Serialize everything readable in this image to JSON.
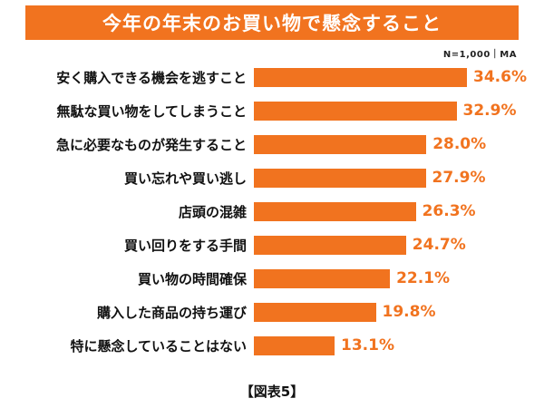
{
  "header": {
    "title": "今年の年末のお買い物で懸念すること"
  },
  "note": "N=1,000｜MA",
  "caption": "【図表5】",
  "colors": {
    "accent": "#F1731F",
    "text": "#111111",
    "background": "#ffffff"
  },
  "chart_data": {
    "type": "bar",
    "orientation": "horizontal",
    "title": "今年の年末のお買い物で懸念すること",
    "subtitle": "N=1,000｜MA",
    "categories": [
      "安く購入できる機会を逃すこと",
      "無駄な買い物をしてしまうこと",
      "急に必要なものが発生すること",
      "買い忘れや買い逃し",
      "店頭の混雑",
      "買い回りをする手間",
      "買い物の時間確保",
      "購入した商品の持ち運び",
      "特に懸念していることはない"
    ],
    "values": [
      34.6,
      32.9,
      28.0,
      27.9,
      26.3,
      24.7,
      22.1,
      19.8,
      13.1
    ],
    "value_suffix": "%",
    "xlabel": "",
    "ylabel": "",
    "xlim": [
      0,
      40
    ],
    "grid": false,
    "legend": false,
    "bar_color": "#F1731F",
    "caption": "【図表5】"
  }
}
